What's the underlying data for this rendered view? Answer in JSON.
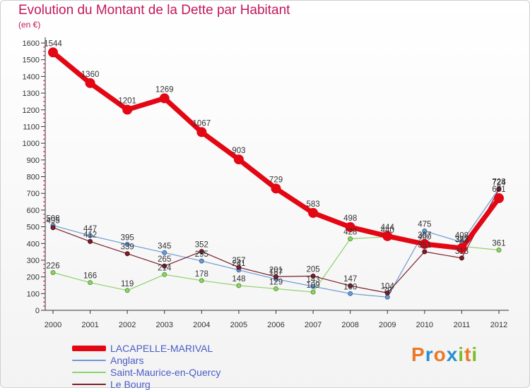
{
  "title": "Evolution du Montant de la Dette par Habitant",
  "subtitle": "(en €)",
  "logo": {
    "text": "Proxiti",
    "letter_colors": [
      "#e8792b",
      "#2a8fd0",
      "#e8792b",
      "#2a8fd0",
      "#7bbd2a",
      "#e8792b",
      "#7bbd2a"
    ]
  },
  "chart_data": {
    "type": "line",
    "title": "Evolution du Montant de la Dette par Habitant",
    "ylabel": "(en €)",
    "xlabel": "",
    "x": [
      "2000",
      "2001",
      "2002",
      "2003",
      "2004",
      "2005",
      "2006",
      "2007",
      "2008",
      "2009",
      "2010",
      "2011",
      "2012"
    ],
    "ylim": [
      0,
      1600
    ],
    "yticks": [
      0,
      100,
      200,
      300,
      400,
      500,
      600,
      700,
      800,
      900,
      1000,
      1100,
      1200,
      1300,
      1400,
      1500,
      1600
    ],
    "grid": false,
    "legend_position": "bottom-left",
    "series": [
      {
        "name": "LACAPELLE-MARIVAL",
        "color": "#e30613",
        "values": [
          1544,
          1360,
          1201,
          1269,
          1067,
          903,
          729,
          583,
          498,
          444,
          397,
          372,
          671
        ]
      },
      {
        "name": "Anglars",
        "color": "#6b9bd2",
        "values": [
          508,
          447,
          395,
          345,
          295,
          241,
          187,
          143,
          100,
          79,
          475,
          408,
          728
        ]
      },
      {
        "name": "Saint-Maurice-en-Quercy",
        "color": "#8fd16a",
        "values": [
          226,
          166,
          119,
          214,
          178,
          148,
          129,
          109,
          428,
          440,
          400,
          383,
          361
        ]
      },
      {
        "name": "Le Bourg",
        "color": "#7a1f2b",
        "values": [
          495,
          412,
          339,
          265,
          352,
          257,
          201,
          205,
          147,
          104,
          351,
          313,
          724
        ]
      }
    ]
  }
}
